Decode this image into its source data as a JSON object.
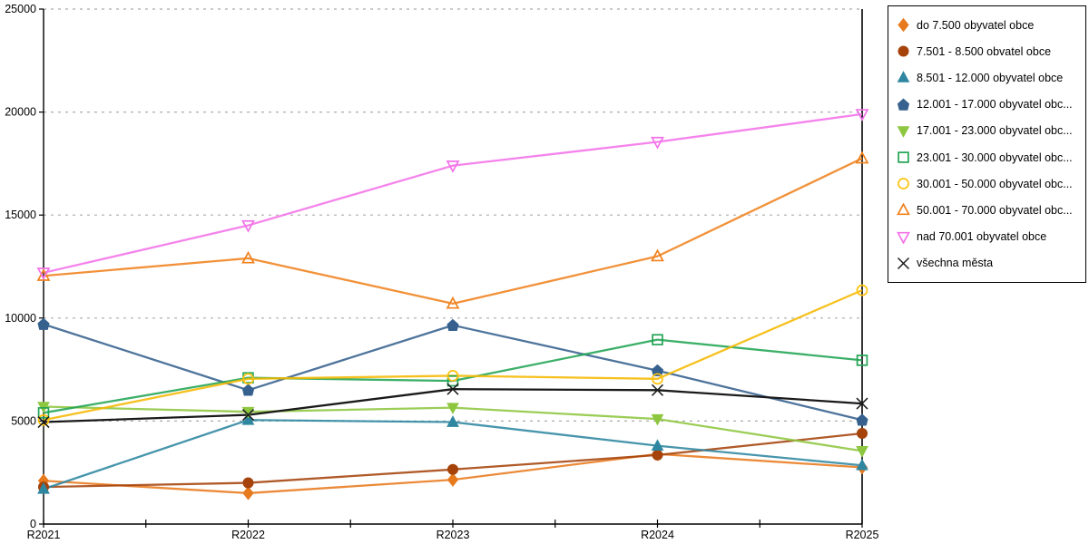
{
  "chart_data": {
    "type": "line",
    "title": "",
    "xlabel": "",
    "ylabel": "",
    "categories": [
      "R2021",
      "R2022",
      "R2023",
      "R2024",
      "R2025"
    ],
    "ylim": [
      0,
      25000
    ],
    "ytick_step": 5000,
    "ytick_labels": [
      "0",
      "5000",
      "10000",
      "15000",
      "20000",
      "25000"
    ],
    "grid": "horizontal-dashed",
    "grid_color": "#ababab",
    "axis_color": "#000000",
    "legend_position": "right-outside",
    "series": [
      {
        "name": "do 7.500 obyvatel obce",
        "marker": "diamond",
        "filled": true,
        "color": "#E87A1E",
        "values": [
          2100,
          1500,
          2150,
          3400,
          2750
        ]
      },
      {
        "name": "7.501 - 8.500 obvatel obce",
        "marker": "circle",
        "filled": true,
        "color": "#A5430B",
        "values": [
          1800,
          2000,
          2650,
          3350,
          4400
        ]
      },
      {
        "name": "8.501 - 12.000 obyvatel obce",
        "marker": "triangle-up",
        "filled": true,
        "color": "#2E86A0",
        "values": [
          1700,
          5050,
          4950,
          3800,
          2850
        ]
      },
      {
        "name": "12.001 - 17.000 obyvatel obc...",
        "marker": "pentagon",
        "filled": true,
        "color": "#36618E",
        "values": [
          9700,
          6500,
          9650,
          7450,
          5050
        ]
      },
      {
        "name": "17.001 - 23.000 obyvatel obc...",
        "marker": "triangle-down",
        "filled": true,
        "color": "#8DC63F",
        "values": [
          5700,
          5450,
          5650,
          5100,
          3550
        ]
      },
      {
        "name": "23.001 - 30.000 obyvatel obc...",
        "marker": "square",
        "filled": false,
        "color": "#21A453",
        "values": [
          5400,
          7100,
          6950,
          8950,
          7950
        ]
      },
      {
        "name": "30.001 - 50.000 obyvatel obc...",
        "marker": "circle",
        "filled": false,
        "color": "#FFC20E",
        "line_color": "#F5B800",
        "values": [
          5050,
          7050,
          7200,
          7050,
          11350
        ]
      },
      {
        "name": "50.001 - 70.000 obyvatel obc...",
        "marker": "triangle-up",
        "filled": false,
        "color": "#F0821E",
        "values": [
          12050,
          12900,
          10700,
          13000,
          17750
        ]
      },
      {
        "name": "nad 70.001 obyvatel obce",
        "marker": "triangle-down",
        "filled": false,
        "color": "#F272E8",
        "values": [
          12200,
          14500,
          17400,
          18550,
          19900
        ]
      },
      {
        "name": "všechna města",
        "marker": "x",
        "filled": false,
        "color": "#1A1A1A",
        "values": [
          4950,
          5300,
          6550,
          6500,
          5850
        ]
      }
    ]
  }
}
